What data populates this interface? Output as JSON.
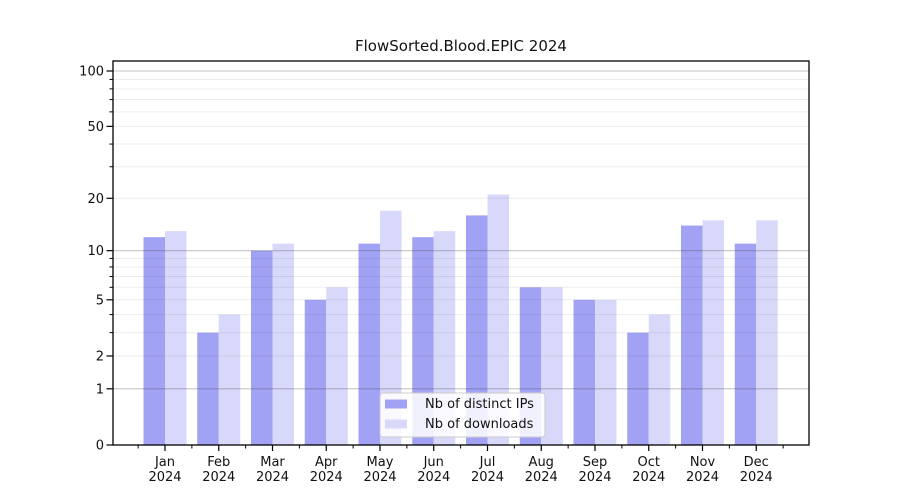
{
  "figure": {
    "title": "FlowSorted.Blood.EPIC 2024"
  },
  "chart_data": {
    "type": "bar",
    "title": "FlowSorted.Blood.EPIC 2024",
    "categories": [
      "Jan 2024",
      "Feb 2024",
      "Mar 2024",
      "Apr 2024",
      "May 2024",
      "Jun 2024",
      "Jul 2024",
      "Aug 2024",
      "Sep 2024",
      "Oct 2024",
      "Nov 2024",
      "Dec 2024"
    ],
    "x_tick_line1": [
      "Jan",
      "Feb",
      "Mar",
      "Apr",
      "May",
      "Jun",
      "Jul",
      "Aug",
      "Sep",
      "Oct",
      "Nov",
      "Dec"
    ],
    "x_tick_line2": "2024",
    "series": [
      {
        "name": "Nb of distinct IPs",
        "color": "#a2a2f4",
        "values": [
          12,
          3,
          10,
          5,
          11,
          12,
          16,
          6,
          5,
          3,
          14,
          11
        ]
      },
      {
        "name": "Nb of downloads",
        "color": "#d8d8fa",
        "values": [
          13,
          4,
          11,
          6,
          17,
          13,
          21,
          6,
          5,
          4,
          15,
          15
        ]
      }
    ],
    "yscale": "log1p",
    "ylim": [
      0,
      113
    ],
    "yticks_labeled": [
      0,
      1,
      2,
      5,
      10,
      20,
      50,
      100
    ],
    "ytick_labels": [
      "0",
      "1",
      "2",
      "5",
      "10",
      "20",
      "50",
      "100"
    ],
    "yticks_minor": [
      3,
      4,
      6,
      7,
      8,
      9,
      30,
      40,
      60,
      70,
      80,
      90
    ],
    "ygrid_major": [
      1,
      10,
      100
    ],
    "ygrid_minor": [
      2,
      3,
      4,
      5,
      6,
      7,
      8,
      9,
      20,
      30,
      40,
      50,
      60,
      70,
      80,
      90
    ],
    "grid": true,
    "legend": {
      "position": "lower center",
      "labels": [
        "Nb of distinct IPs",
        "Nb of downloads"
      ]
    },
    "colors": {
      "spine": "#000000",
      "grid_major": "rgba(64,64,64,0.30)",
      "grid_minor": "rgba(0,0,0,0.07)",
      "legend_border": "#cccccc",
      "legend_bg": "rgba(255,255,255,0.85)"
    }
  }
}
